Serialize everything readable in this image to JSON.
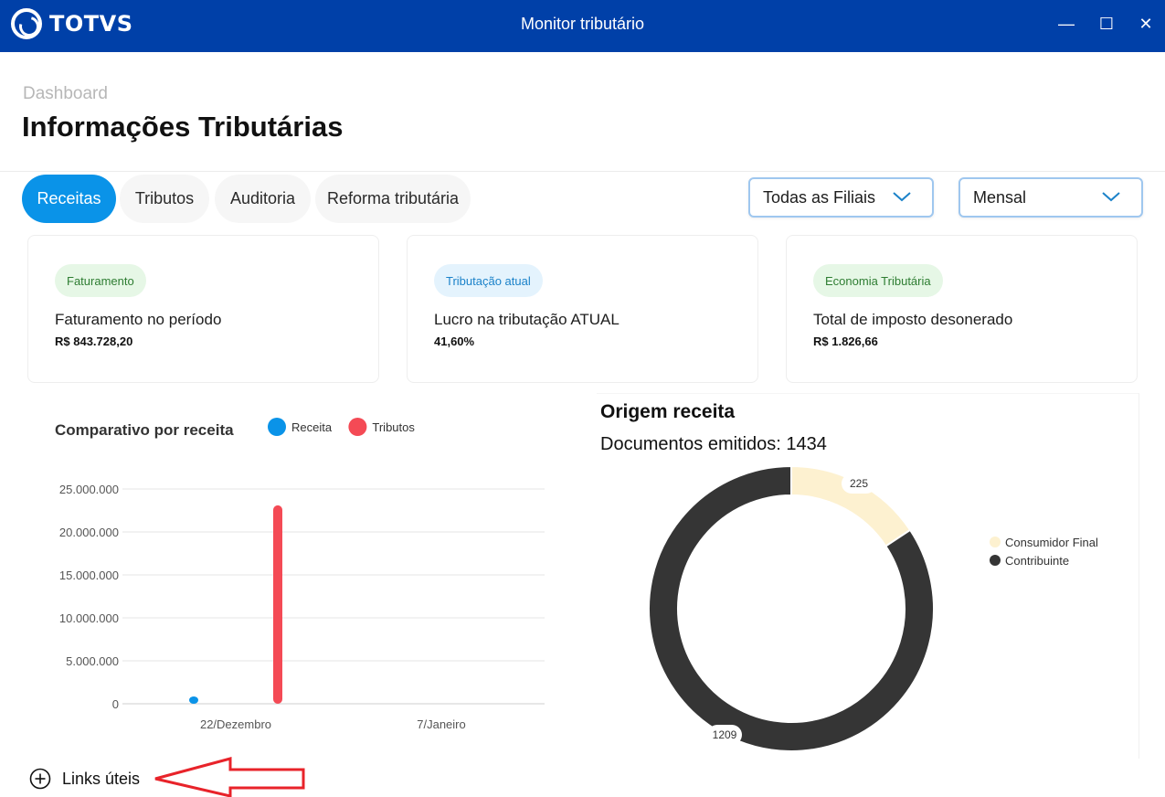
{
  "app": {
    "logo_text": "TOTVS",
    "window_title": "Monitor tributário"
  },
  "window_controls": {
    "minimize": "—",
    "maximize": "☐",
    "close": "✕"
  },
  "header": {
    "breadcrumb": "Dashboard",
    "title": "Informações Tributárias"
  },
  "tabs": [
    {
      "label": "Receitas",
      "active": true
    },
    {
      "label": "Tributos",
      "active": false
    },
    {
      "label": "Auditoria",
      "active": false
    },
    {
      "label": "Reforma tributária",
      "active": false
    }
  ],
  "filters": {
    "branch": "Todas as Filiais",
    "period": "Mensal"
  },
  "cards": [
    {
      "badge": "Faturamento",
      "label": "Faturamento no período",
      "value": "R$ 843.728,20"
    },
    {
      "badge": "Tributação atual",
      "label": "Lucro na tributação ATUAL",
      "value": "41,60%"
    },
    {
      "badge": "Economia Tributária",
      "label": "Total de imposto desonerado",
      "value": "R$ 1.826,66"
    }
  ],
  "colors": {
    "receita": "#0a93e8",
    "tributos": "#f44a55",
    "consumidor_final": "#fdf1d0",
    "contribuinte": "#353535",
    "primary": "#0040a8"
  },
  "chart_data": [
    {
      "type": "bar",
      "title": "Comparativo por receita",
      "categories": [
        "22/Dezembro",
        "7/Janeiro"
      ],
      "series": [
        {
          "name": "Receita",
          "values": [
            500000,
            0
          ]
        },
        {
          "name": "Tributos",
          "values": [
            23100000,
            0
          ]
        }
      ],
      "yticks": [
        "0",
        "5.000.000",
        "10.000.000",
        "15.000.000",
        "20.000.000",
        "25.000.000"
      ],
      "ylim": [
        0,
        25000000
      ],
      "grid": true,
      "legend": "top"
    },
    {
      "type": "pie",
      "title": "Origem receita",
      "subtitle": "Documentos emitidos: 1434",
      "categories": [
        "Consumidor Final",
        "Contribuinte"
      ],
      "values": [
        225,
        1209
      ],
      "labels": [
        "225",
        "1209"
      ],
      "legend": "right"
    }
  ],
  "links": {
    "label": "Links úteis"
  }
}
